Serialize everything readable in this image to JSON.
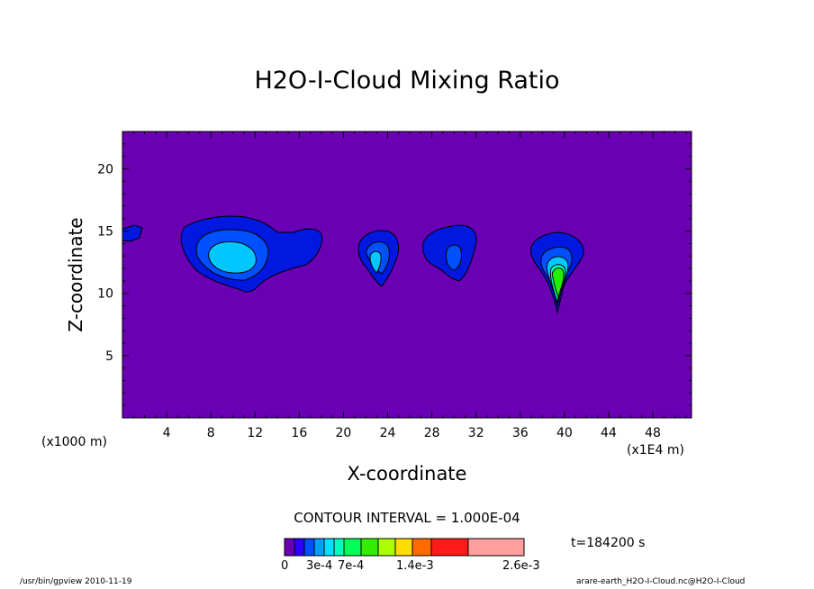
{
  "chart_data": {
    "type": "heatmap",
    "title": "H2O-I-Cloud Mixing Ratio",
    "xlabel": "X-coordinate",
    "ylabel": "Z-coordinate",
    "x_unit_label": "(x1000 m)",
    "x_secondary_unit_label": "(x1E4 m)",
    "x_ticks": [
      4,
      8,
      12,
      16,
      20,
      24,
      28,
      32,
      36,
      40,
      44,
      48
    ],
    "y_ticks": [
      5,
      10,
      15,
      20
    ],
    "xlim": [
      0,
      51.5
    ],
    "ylim": [
      0,
      23
    ],
    "background_value": 0,
    "contour_interval_label": "CONTOUR INTERVAL = 1.000E-04",
    "time_label": "t=184200 s",
    "colorbar": {
      "colors": [
        "#6a00b4",
        "#2a00ff",
        "#0050ff",
        "#00a0ff",
        "#00e0ff",
        "#00ffbe",
        "#00ff55",
        "#33ee00",
        "#aaff00",
        "#ffdd00",
        "#ff6a00",
        "#ff1a1a",
        "#ff9e9e"
      ],
      "labels": [
        "0",
        "3e-4",
        "7e-4",
        "1.4e-3",
        "2.6e-3"
      ]
    },
    "features": [
      {
        "x": 1.0,
        "z": 14.9,
        "peak_level": 1
      },
      {
        "x": 10.0,
        "z": 12.7,
        "peak_level": 4
      },
      {
        "x": 22.8,
        "z": 12.3,
        "peak_level": 4
      },
      {
        "x": 29.0,
        "z": 13.0,
        "peak_level": 2
      },
      {
        "x": 39.1,
        "z": 11.6,
        "peak_level": 6
      }
    ]
  },
  "footer": {
    "left": "/usr/bin/gpview   2010-11-19",
    "right": "arare-earth_H2O-I-Cloud.nc@H2O-I-Cloud"
  }
}
